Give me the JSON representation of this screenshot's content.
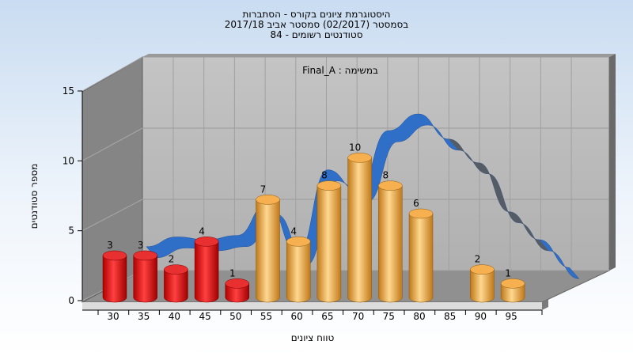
{
  "chart_data": {
    "type": "bar",
    "title_lines": [
      "היסטוגרמת ציונים בקורס - הסתברות",
      "בסמסטר  (02/2017)  סמסטר אביב 2017/18",
      "סטודנטים רשומים - 84"
    ],
    "annotation": "במשימה : Final_A",
    "xlabel": "טווח ציונים",
    "ylabel": "מספר סטודנטים",
    "categories": [
      "30",
      "35",
      "40",
      "45",
      "50",
      "55",
      "60",
      "65",
      "70",
      "75",
      "80",
      "85",
      "90",
      "95"
    ],
    "x_ticks": [
      "30",
      "35",
      "40",
      "45",
      "50",
      "55",
      "60",
      "65",
      "70",
      "75",
      "80",
      "85",
      "90",
      "95"
    ],
    "values": [
      3,
      3,
      2,
      4,
      1,
      7,
      4,
      8,
      10,
      8,
      6,
      null,
      2,
      1
    ],
    "y_ticks": [
      0,
      5,
      10,
      15
    ],
    "ylim": [
      0,
      15
    ],
    "grid": true,
    "bar_colors": {
      "failing": "#e01010",
      "passing": "#f0a030"
    },
    "pass_threshold": 55,
    "ribbon_color": "#2f6fc8",
    "ribbon_shadow_color": "#5a5a5a",
    "ribbon_values": [
      2.5,
      3.2,
      3.0,
      3.3,
      5.6,
      2.0,
      8.0,
      6.5,
      10.8,
      12.0,
      10.2,
      8.5,
      5.0,
      3.0,
      1.0
    ]
  }
}
